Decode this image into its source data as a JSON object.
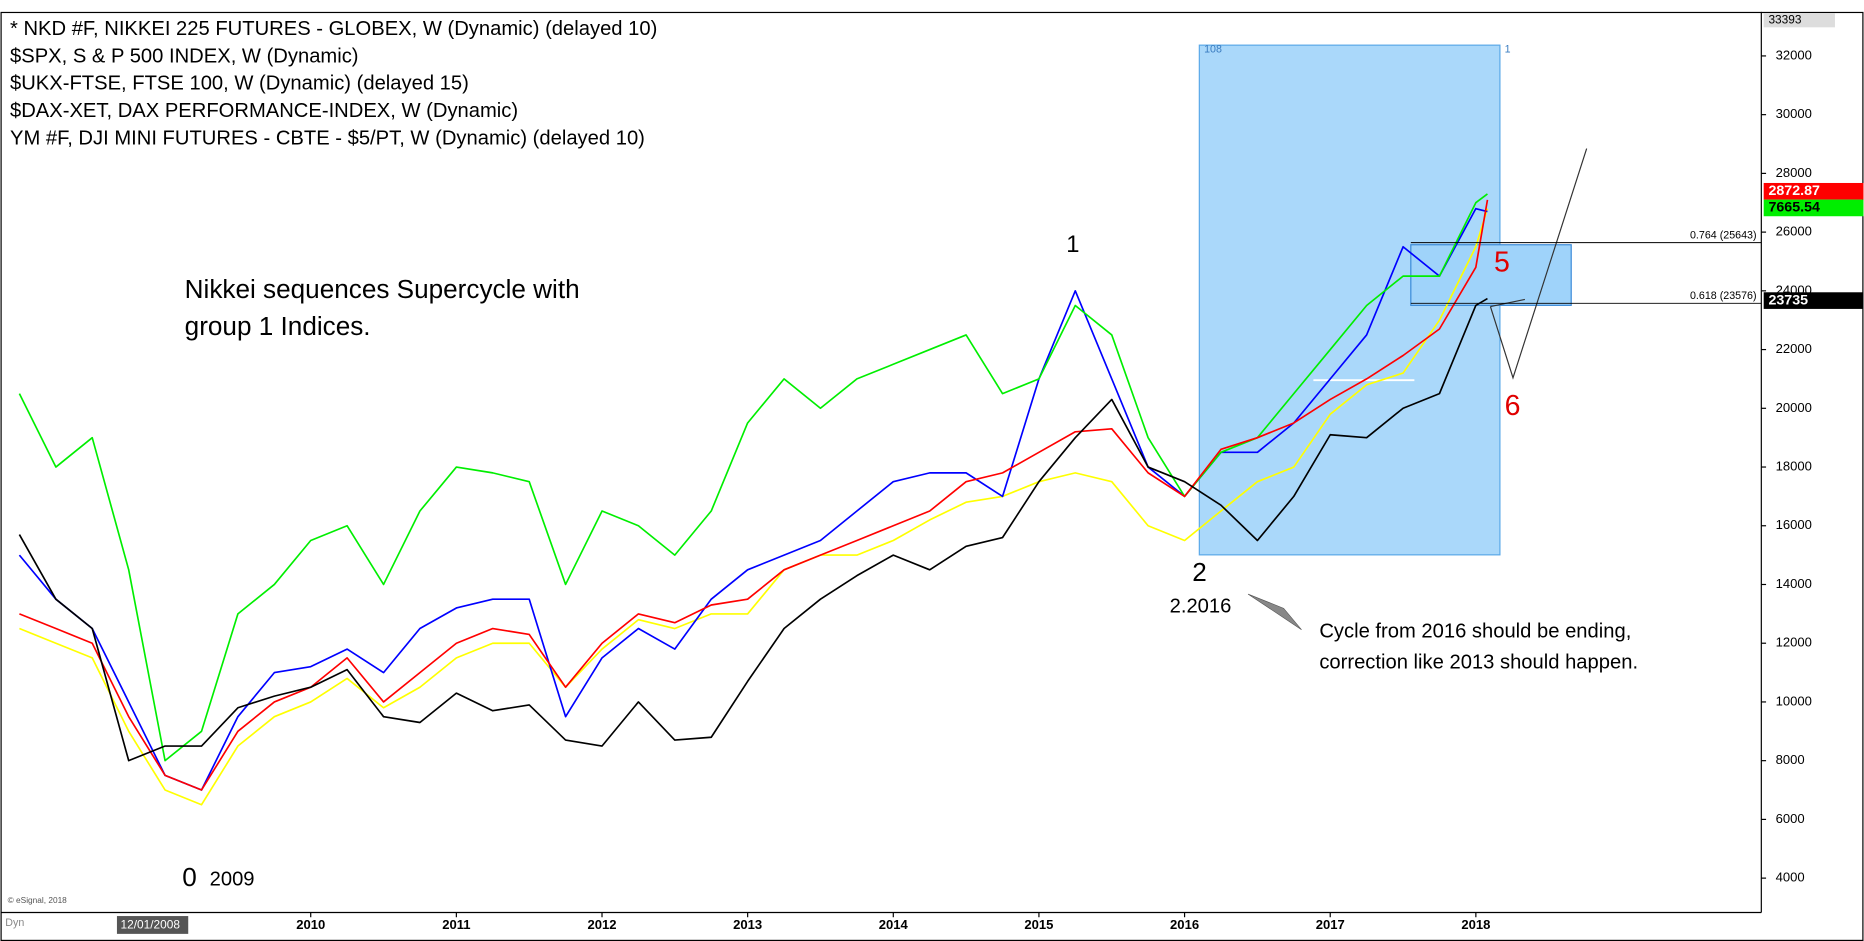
{
  "chart_data": {
    "type": "line",
    "x": [
      2008,
      2008.25,
      2008.5,
      2008.75,
      2009,
      2009.25,
      2009.5,
      2009.75,
      2010,
      2010.25,
      2010.5,
      2010.75,
      2011,
      2011.25,
      2011.5,
      2011.75,
      2012,
      2012.25,
      2012.5,
      2012.75,
      2013,
      2013.25,
      2013.5,
      2013.75,
      2014,
      2014.25,
      2014.5,
      2014.75,
      2015,
      2015.25,
      2015.5,
      2015.75,
      2016,
      2016.25,
      2016.5,
      2016.75,
      2017,
      2017.25,
      2017.5,
      2017.75,
      2018,
      2018.08
    ],
    "xlim": [
      2007.87,
      2019.96
    ],
    "xticks": [
      2010,
      2011,
      2012,
      2013,
      2014,
      2015,
      2016,
      2017,
      2018
    ],
    "ylim": [
      2830,
      33500
    ],
    "yticks": [
      4000,
      6000,
      8000,
      10000,
      12000,
      14000,
      16000,
      18000,
      20000,
      22000,
      24000,
      26000,
      28000,
      30000,
      32000
    ],
    "series": [
      {
        "name": "* NKD #F, NIKKEI 225 FUTURES - GLOBEX, W (Dynamic) (delayed 10)",
        "color": "#000000",
        "values": [
          15700,
          13500,
          12500,
          8000,
          8500,
          8500,
          9800,
          10200,
          10500,
          11100,
          9500,
          9300,
          10300,
          9700,
          9900,
          8700,
          8500,
          10000,
          8700,
          8800,
          10700,
          12500,
          13500,
          14300,
          15000,
          14500,
          15300,
          15600,
          17500,
          19000,
          20300,
          18000,
          17500,
          16700,
          15500,
          17000,
          19100,
          19000,
          20000,
          20500,
          23500,
          23735
        ]
      },
      {
        "name": "$SPX, S & P 500 INDEX, W (Dynamic)",
        "color": "#ff0000",
        "values": [
          13000,
          12500,
          12000,
          9500,
          7500,
          7000,
          9000,
          10000,
          10500,
          11500,
          10000,
          11000,
          12000,
          12500,
          12300,
          10500,
          12000,
          13000,
          12700,
          13300,
          13500,
          14500,
          15000,
          15500,
          16000,
          16500,
          17500,
          17800,
          18500,
          19200,
          19300,
          17800,
          17000,
          18600,
          19000,
          19500,
          20300,
          21000,
          21800,
          22700,
          24800,
          27100
        ]
      },
      {
        "name": "$UKX-FTSE, FTSE 100, W (Dynamic) (delayed 15)",
        "color": "#00ee00",
        "values": [
          20500,
          18000,
          19000,
          14500,
          8000,
          9000,
          13000,
          14000,
          15500,
          16000,
          14000,
          16500,
          18000,
          17800,
          17500,
          14000,
          16500,
          16000,
          15000,
          16500,
          19500,
          21000,
          20000,
          21000,
          21500,
          22000,
          22500,
          20500,
          21000,
          23500,
          22500,
          19000,
          17000,
          18500,
          19000,
          20500,
          22000,
          23500,
          24500,
          24500,
          27000,
          27300
        ]
      },
      {
        "name": "$DAX-XET, DAX PERFORMANCE-INDEX, W (Dynamic)",
        "color": "#0000ff",
        "values": [
          15000,
          13500,
          12500,
          10000,
          7500,
          7000,
          9500,
          11000,
          11200,
          11800,
          11000,
          12500,
          13200,
          13500,
          13500,
          9500,
          11500,
          12500,
          11800,
          13500,
          14500,
          15000,
          15500,
          16500,
          17500,
          17800,
          17800,
          17000,
          21000,
          24000,
          21000,
          18000,
          17000,
          18500,
          18500,
          19500,
          21000,
          22500,
          25500,
          24500,
          26800,
          26700
        ]
      },
      {
        "name": "YM #F, DJI MINI FUTURES - CBTE - $5/PT, W (Dynamic) (delayed 10)",
        "color": "#ffff00",
        "values": [
          12500,
          12000,
          11500,
          9000,
          7000,
          6500,
          8500,
          9500,
          10000,
          10800,
          9800,
          10500,
          11500,
          12000,
          12000,
          10500,
          11800,
          12800,
          12500,
          13000,
          13000,
          14500,
          15000,
          15000,
          15500,
          16200,
          16800,
          17000,
          17500,
          17800,
          17500,
          16000,
          15500,
          16500,
          17500,
          18000,
          19800,
          20800,
          21200,
          23000,
          25500,
          26800
        ]
      }
    ],
    "fib_levels": [
      {
        "label": "0.764 (25643)",
        "value": 25643
      },
      {
        "label": "0.618 (23576)",
        "value": 23576
      }
    ],
    "price_labels": [
      "33393",
      "2872.87",
      "7665.54",
      "23735"
    ],
    "box_labels": [
      "108",
      "1"
    ],
    "annotations": {
      "headline": [
        "Nikkei sequences Supercycle with",
        "group 1 Indices."
      ],
      "wave_1": "1",
      "wave_2": "2",
      "wave_2_date": "2.2016",
      "wave_0": "0",
      "wave_0_date": "2009",
      "wave_5": "5",
      "wave_6": "6",
      "comment": [
        "Cycle from 2016 should be ending,",
        "correction like 2013 should happen."
      ]
    },
    "cursor_date": "12/01/2008",
    "mode_label": "Dyn",
    "watermark": "© eSignal, 2018"
  }
}
